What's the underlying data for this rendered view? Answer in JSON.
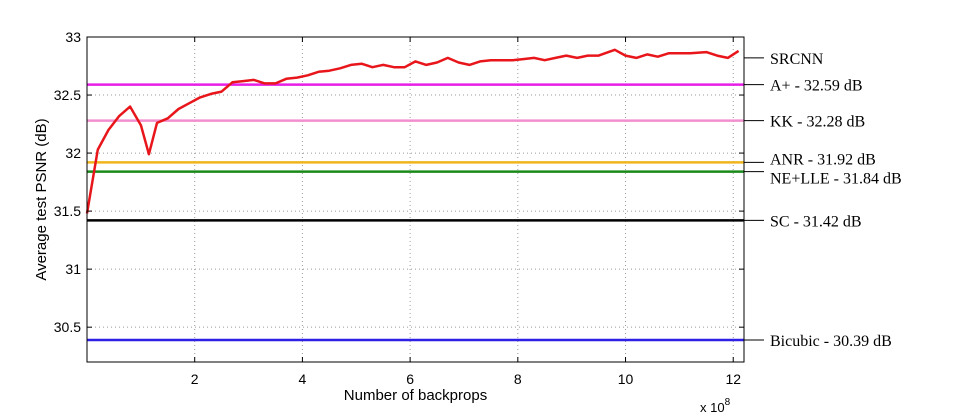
{
  "chart_data": {
    "type": "line",
    "xlabel": "Number of backprops",
    "ylabel": "Average test PSNR (dB)",
    "x_multiplier_label": "x 10",
    "x_multiplier_exponent": "8",
    "xlim": [
      0,
      12.2
    ],
    "ylim": [
      30.2,
      33
    ],
    "x_ticks": [
      2,
      4,
      6,
      8,
      10,
      12
    ],
    "y_ticks": [
      30.5,
      31,
      31.5,
      32,
      32.5,
      33
    ],
    "x_tick_labels": [
      "2",
      "4",
      "6",
      "8",
      "10",
      "12"
    ],
    "y_tick_labels": [
      "30.5",
      "31",
      "31.5",
      "32",
      "32.5",
      "33"
    ],
    "grid": true,
    "series": [
      {
        "name": "SRCNN",
        "color": "#e8161b",
        "x": [
          0,
          0.2,
          0.4,
          0.6,
          0.8,
          1.0,
          1.15,
          1.3,
          1.5,
          1.7,
          1.9,
          2.1,
          2.3,
          2.5,
          2.7,
          2.9,
          3.1,
          3.3,
          3.5,
          3.7,
          3.9,
          4.1,
          4.3,
          4.5,
          4.7,
          4.9,
          5.1,
          5.3,
          5.5,
          5.7,
          5.9,
          6.1,
          6.3,
          6.5,
          6.7,
          6.9,
          7.1,
          7.3,
          7.5,
          7.7,
          7.9,
          8.1,
          8.3,
          8.5,
          8.7,
          8.9,
          9.1,
          9.3,
          9.5,
          9.8,
          10.0,
          10.2,
          10.4,
          10.6,
          10.8,
          11.0,
          11.2,
          11.5,
          11.7,
          11.9,
          12.1
        ],
        "y": [
          31.48,
          32.03,
          32.2,
          32.32,
          32.4,
          32.24,
          31.99,
          32.26,
          32.3,
          32.38,
          32.43,
          32.48,
          32.51,
          32.53,
          32.61,
          32.62,
          32.63,
          32.6,
          32.6,
          32.64,
          32.65,
          32.67,
          32.7,
          32.71,
          32.73,
          32.76,
          32.77,
          32.74,
          32.76,
          32.74,
          32.74,
          32.79,
          32.76,
          32.78,
          32.82,
          32.78,
          32.76,
          32.79,
          32.8,
          32.8,
          32.8,
          32.81,
          32.82,
          32.8,
          32.82,
          32.84,
          32.82,
          32.84,
          32.84,
          32.89,
          32.84,
          32.82,
          32.85,
          32.83,
          32.86,
          32.86,
          32.86,
          32.87,
          32.84,
          32.82,
          32.88
        ]
      }
    ],
    "reference_lines": [
      {
        "name": "A+ - 32.59 dB",
        "value": 32.59,
        "color": "#e61ee6"
      },
      {
        "name": "KK - 32.28 dB",
        "value": 32.28,
        "color": "#f28fcf"
      },
      {
        "name": "ANR - 31.92 dB",
        "value": 31.92,
        "color": "#f0b41c"
      },
      {
        "name": "NE+LLE - 31.84 dB",
        "value": 31.84,
        "color": "#1a8a1a"
      },
      {
        "name": "SC - 31.42 dB",
        "value": 31.42,
        "color": "#000000"
      },
      {
        "name": "Bicubic - 30.39 dB",
        "value": 30.39,
        "color": "#3020e6"
      }
    ]
  }
}
